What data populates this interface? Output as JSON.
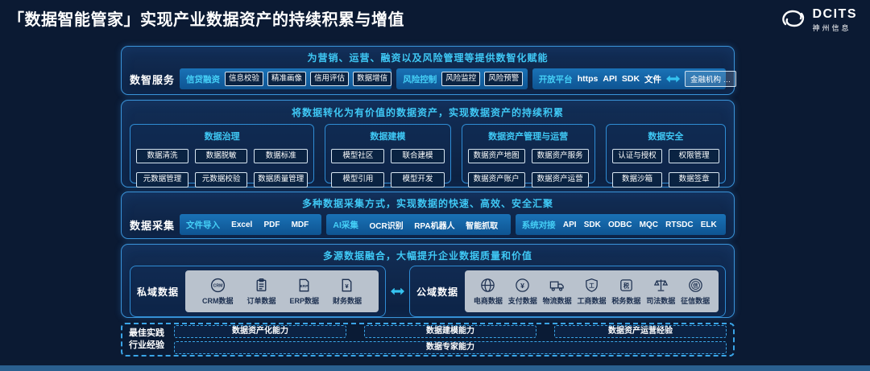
{
  "page": {
    "title": "「数据智能管家」实现产业数据资产的持续积累与增值",
    "logo": {
      "name": "DCITS",
      "subtitle": "神州信息"
    }
  },
  "services": {
    "label": "数智服务",
    "header": "为营销、运营、融资以及风险管理等提供数智化赋能",
    "groups": [
      {
        "label": "信贷融资",
        "buttons": [
          "信息校验",
          "精准画像",
          "信用评估",
          "数据增信"
        ]
      },
      {
        "label": "风险控制",
        "buttons": [
          "风险监控",
          "风险预警"
        ]
      },
      {
        "label": "开放平台",
        "items": [
          "https",
          "API",
          "SDK",
          "文件"
        ],
        "partner": "金融机构 …"
      }
    ]
  },
  "assets": {
    "header": "将数据转化为有价值的数据资产，实现数据资产的持续积累",
    "panels": [
      {
        "title": "数据治理",
        "buttons": [
          "数据清洗",
          "数据脱敏",
          "数据标准",
          "元数据管理",
          "元数据校验",
          "数据质量管理"
        ]
      },
      {
        "title": "数据建模",
        "buttons": [
          "模型社区",
          "联合建模",
          "模型引用",
          "模型开发"
        ]
      },
      {
        "title": "数据资产管理与运营",
        "buttons": [
          "数据资产地图",
          "数据资产服务",
          "数据资产账户",
          "数据资产运营"
        ]
      },
      {
        "title": "数据安全",
        "buttons": [
          "认证与授权",
          "权限管理",
          "数据沙箱",
          "数据签章"
        ]
      }
    ]
  },
  "collection": {
    "label": "数据采集",
    "header": "多种数据采集方式，实现数据的快速、高效、安全汇聚",
    "groups": [
      {
        "label": "文件导入",
        "items": [
          "Excel",
          "PDF",
          "MDF"
        ]
      },
      {
        "label": "AI采集",
        "items": [
          "OCR识别",
          "RPA机器人",
          "智能抓取"
        ]
      },
      {
        "label": "系统对接",
        "items": [
          "API",
          "SDK",
          "ODBC",
          "MQC",
          "RTSDC",
          "ELK"
        ]
      }
    ]
  },
  "fusion": {
    "header": "多源数据融合，大幅提升企业数据质量和价值",
    "private": {
      "label": "私域数据",
      "items": [
        {
          "icon": "crm-icon",
          "label": "CRM数据"
        },
        {
          "icon": "order-icon",
          "label": "订单数据"
        },
        {
          "icon": "erp-icon",
          "label": "ERP数据"
        },
        {
          "icon": "finance-icon",
          "label": "财务数据"
        }
      ]
    },
    "public": {
      "label": "公域数据",
      "items": [
        {
          "icon": "ecommerce-icon",
          "label": "电商数据"
        },
        {
          "icon": "payment-icon",
          "label": "支付数据"
        },
        {
          "icon": "logistics-icon",
          "label": "物流数据"
        },
        {
          "icon": "business-icon",
          "label": "工商数据"
        },
        {
          "icon": "tax-icon",
          "label": "税务数据"
        },
        {
          "icon": "judicial-icon",
          "label": "司法数据"
        },
        {
          "icon": "credit-icon",
          "label": "征信数据"
        }
      ]
    }
  },
  "practice": {
    "label_line1": "最佳实践",
    "label_line2": "行业经验",
    "capabilities": [
      "数据资产化能力",
      "数据建模能力",
      "数据资产运营经验"
    ],
    "bottom": "数据专家能力"
  },
  "colors": {
    "background": "#0b1a33",
    "accent_cyan": "#3fc8f5",
    "panel_border": "#3a93d8",
    "bar_blue": "#1467ab",
    "button_bg": "#0a2342",
    "gray_box": "#b9c2cd",
    "icon_ink": "#1d3050",
    "bottom_strip": "#2a5f8f"
  }
}
